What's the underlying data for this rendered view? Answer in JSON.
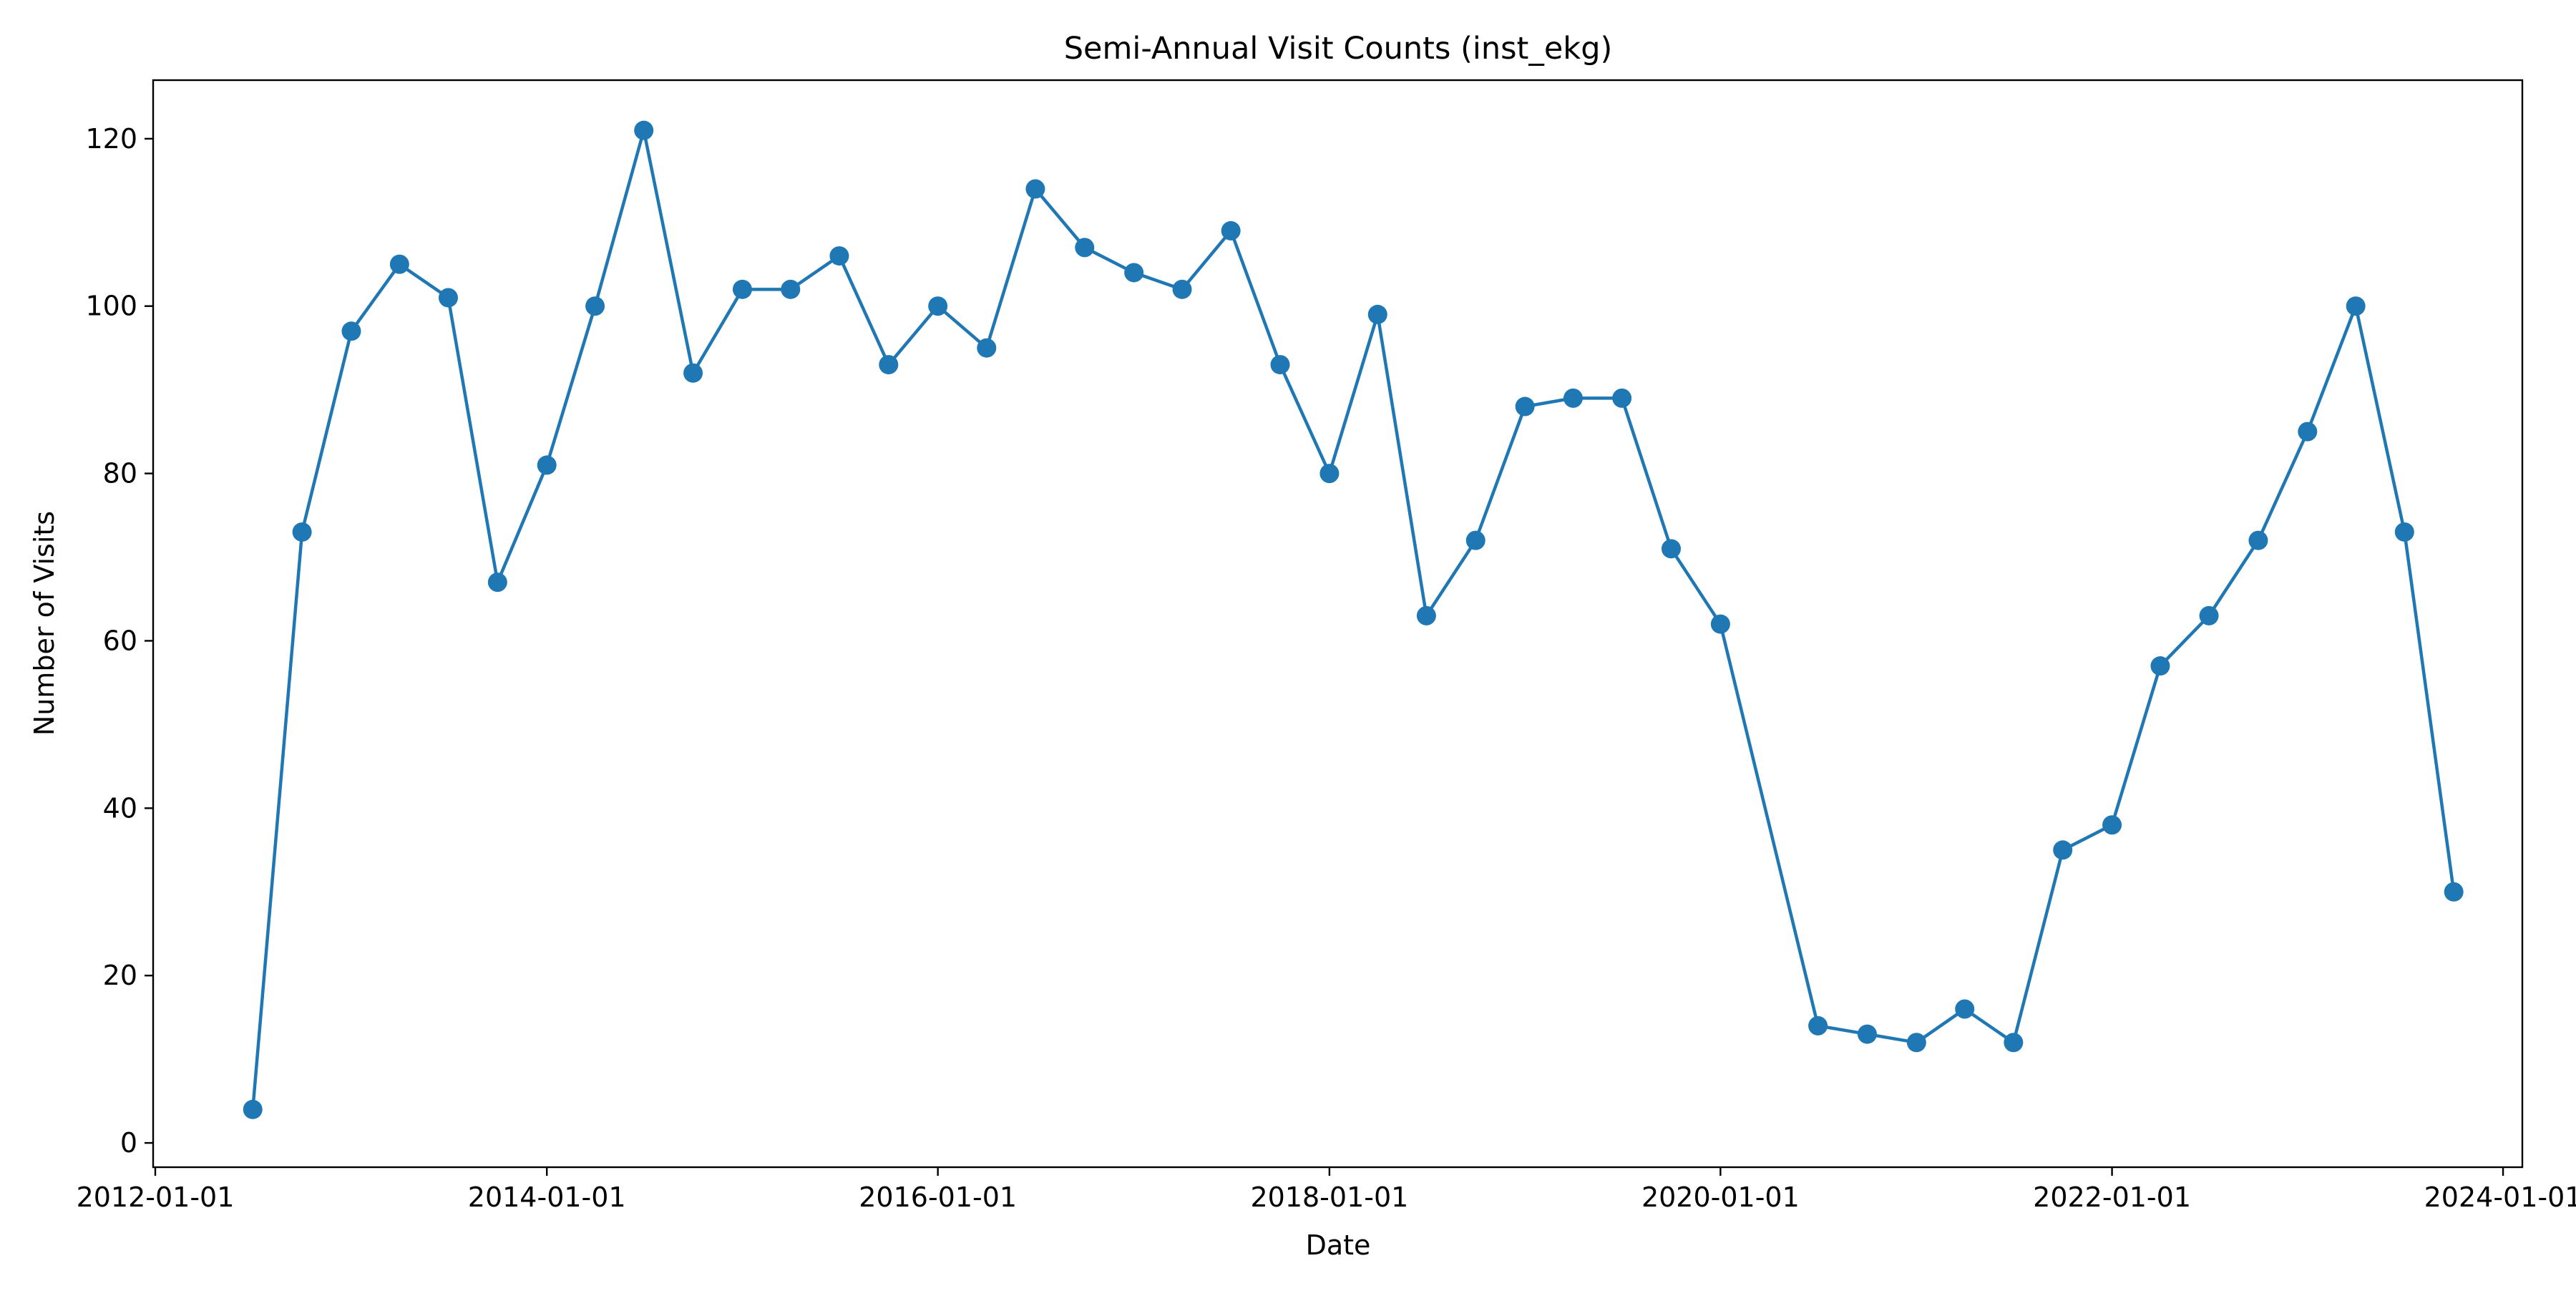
{
  "chart_data": {
    "type": "line",
    "title": "Semi-Annual Visit Counts (inst_ekg)",
    "xlabel": "Date",
    "ylabel": "Number of Visits",
    "xlim": [
      "2011-12-28",
      "2024-02-06"
    ],
    "ylim": [
      -2.9,
      127
    ],
    "x_ticks": [
      "2012-01-01",
      "2014-01-01",
      "2016-01-01",
      "2018-01-01",
      "2020-01-01",
      "2022-01-01",
      "2024-01-01"
    ],
    "y_ticks": [
      0,
      20,
      40,
      60,
      80,
      100,
      120
    ],
    "grid": false,
    "color": "#1f77b4",
    "series": [
      {
        "x": [
          "2012-07-01",
          "2012-10-01",
          "2013-01-01",
          "2013-04-01",
          "2013-07-01",
          "2013-10-01",
          "2014-01-01",
          "2014-04-01",
          "2014-07-01",
          "2014-10-01",
          "2015-01-01",
          "2015-04-01",
          "2015-07-01",
          "2015-10-01",
          "2016-01-01",
          "2016-04-01",
          "2016-07-01",
          "2016-10-01",
          "2017-01-01",
          "2017-04-01",
          "2017-07-01",
          "2017-10-01",
          "2018-01-01",
          "2018-04-01",
          "2018-07-01",
          "2018-10-01",
          "2019-01-01",
          "2019-04-01",
          "2019-07-01",
          "2019-10-01",
          "2020-01-01",
          "2020-07-01",
          "2020-10-01",
          "2021-01-01",
          "2021-04-01",
          "2021-07-01",
          "2021-10-01",
          "2022-01-01",
          "2022-04-01",
          "2022-07-01",
          "2022-10-01",
          "2023-01-01",
          "2023-04-01",
          "2023-07-01",
          "2023-10-01"
        ],
        "y": [
          4,
          73,
          97,
          105,
          101,
          67,
          81,
          100,
          121,
          92,
          102,
          102,
          106,
          93,
          100,
          95,
          114,
          107,
          104,
          102,
          109,
          93,
          80,
          99,
          63,
          72,
          88,
          89,
          89,
          71,
          62,
          14,
          13,
          12,
          16,
          12,
          35,
          38,
          57,
          63,
          72,
          85,
          100,
          73,
          30
        ]
      }
    ]
  }
}
